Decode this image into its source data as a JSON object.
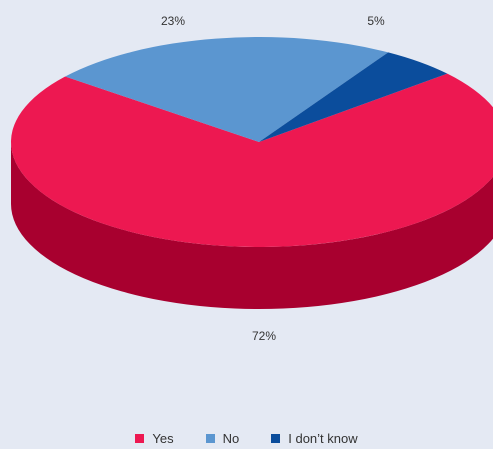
{
  "chart_data": {
    "type": "pie",
    "title": "",
    "categories": [
      "Yes",
      "No",
      "I don’t know"
    ],
    "values": [
      72,
      23,
      5
    ],
    "labels": [
      "72%",
      "23%",
      "5%"
    ],
    "colors": [
      "#ed1851",
      "#5b96d0",
      "#0b4d9c"
    ],
    "side_colors": [
      "#a8002f",
      "#3f6f9c",
      "#083670"
    ],
    "legend_position": "bottom",
    "style": "3d"
  },
  "legend": {
    "items": [
      {
        "label": "Yes",
        "color": "#ed1851"
      },
      {
        "label": "No",
        "color": "#5b96d0"
      },
      {
        "label": "I don’t know",
        "color": "#0b4d9c"
      }
    ]
  }
}
